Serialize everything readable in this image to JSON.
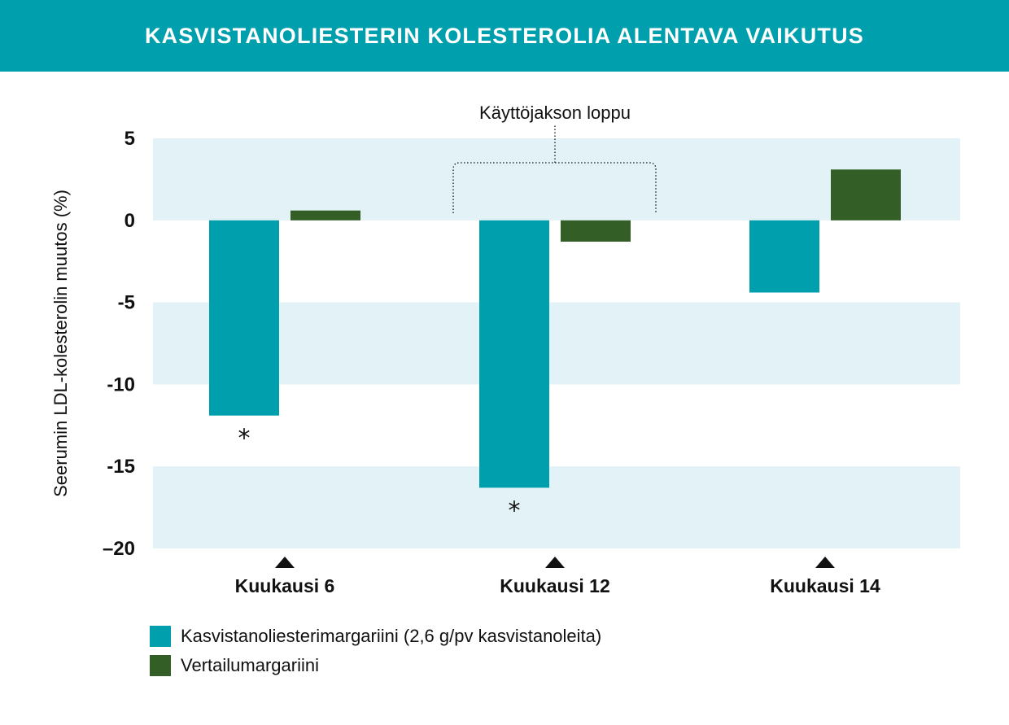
{
  "title": "KASVISTANOLIESTERIN KOLESTEROLIA ALENTAVA VAIKUTUS",
  "colors": {
    "header": "#009fad",
    "band": "#e2f2f6",
    "series1": "#009fad",
    "series2": "#335f26"
  },
  "chart_data": {
    "type": "bar",
    "title": "",
    "xlabel": "",
    "ylabel": "Seerumin LDL-kolesterolin muutos (%)",
    "ylim": [
      -20,
      5
    ],
    "yticks": [
      5,
      0,
      -5,
      -10,
      -15,
      -20
    ],
    "ytick_labels": [
      "5",
      "0",
      "-5",
      "-10",
      "-15",
      "–20"
    ],
    "categories": [
      "Kuukausi 6",
      "Kuukausi 12",
      "Kuukausi 14"
    ],
    "series": [
      {
        "name": "Kasvistanoliesterimargariini (2,6 g/pv kasvistanoleita)",
        "values": [
          -11.9,
          -16.3,
          -4.4
        ]
      },
      {
        "name": "Vertailumargariini",
        "values": [
          0.6,
          -1.3,
          3.1
        ]
      }
    ],
    "significance": [
      "*",
      "*",
      ""
    ],
    "bracket_label": "Käyttöjakson loppu",
    "bracket_category": 1,
    "legend_position": "bottom-left"
  }
}
